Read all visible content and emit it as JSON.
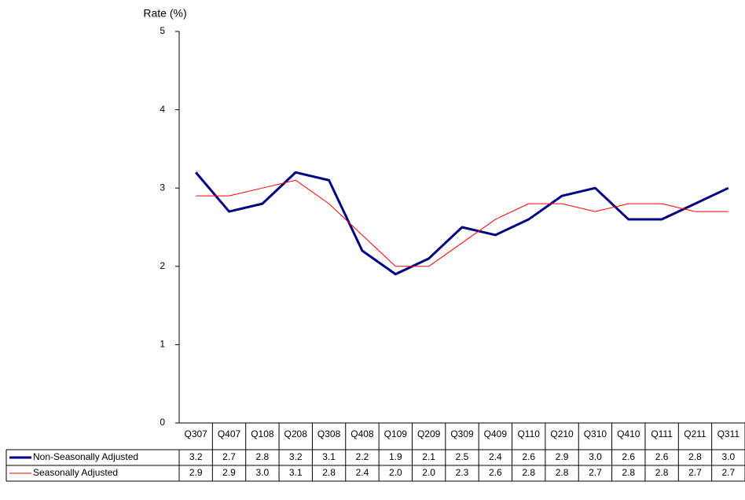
{
  "chart_data": {
    "type": "line",
    "y_label": "Rate (%)",
    "categories": [
      "Q307",
      "Q407",
      "Q108",
      "Q208",
      "Q308",
      "Q408",
      "Q109",
      "Q209",
      "Q309",
      "Q409",
      "Q110",
      "Q210",
      "Q310",
      "Q410",
      "Q111",
      "Q211",
      "Q311"
    ],
    "series": [
      {
        "name": "Non-Seasonally Adjusted",
        "color": "#000080",
        "values": [
          3.2,
          2.7,
          2.8,
          3.2,
          3.1,
          2.2,
          1.9,
          2.1,
          2.5,
          2.4,
          2.6,
          2.9,
          3.0,
          2.6,
          2.6,
          2.8,
          3.0
        ],
        "value_labels": [
          "3.2",
          "2.7",
          "2.8",
          "3.2",
          "3.1",
          "2.2",
          "1.9",
          "2.1",
          "2.5",
          "2.4",
          "2.6",
          "2.9",
          "3.0",
          "2.6",
          "2.6",
          "2.8",
          "3.0"
        ]
      },
      {
        "name": "Seasonally Adjusted",
        "color": "#ff0000",
        "values": [
          2.9,
          2.9,
          3.0,
          3.1,
          2.8,
          2.4,
          2.0,
          2.0,
          2.3,
          2.6,
          2.8,
          2.8,
          2.7,
          2.8,
          2.8,
          2.7,
          2.7
        ],
        "value_labels": [
          "2.9",
          "2.9",
          "3.0",
          "3.1",
          "2.8",
          "2.4",
          "2.0",
          "2.0",
          "2.3",
          "2.6",
          "2.8",
          "2.8",
          "2.7",
          "2.8",
          "2.8",
          "2.7",
          "2.7"
        ]
      }
    ],
    "ylim": [
      0,
      5
    ],
    "yticks": [
      0,
      1,
      2,
      3,
      4,
      5
    ],
    "grid": false
  }
}
